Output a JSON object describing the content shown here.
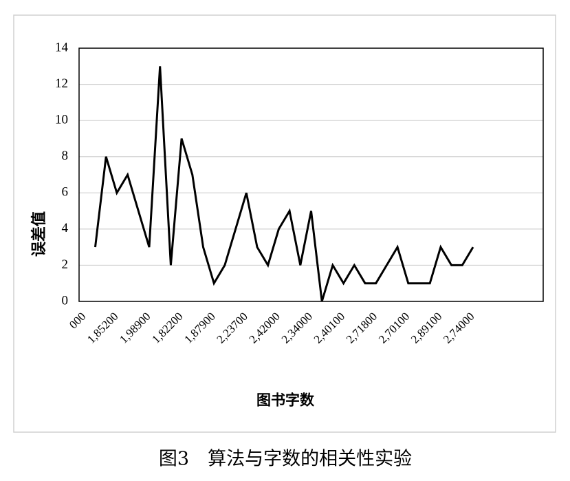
{
  "chart_data": {
    "type": "line",
    "y_label": "误差值",
    "x_label": "图书字数",
    "caption": "图3　算法与字数的相关性实验",
    "categories": [
      "000",
      null,
      null,
      "1,85200",
      null,
      null,
      "1,98900",
      null,
      null,
      "1,82200",
      null,
      null,
      "1,87900",
      null,
      null,
      "2,23700",
      null,
      null,
      "2,42000",
      null,
      null,
      "2,34000",
      null,
      null,
      "2,40100",
      null,
      null,
      "2,71800",
      null,
      null,
      "2,70100",
      null,
      null,
      "2,89100",
      null,
      null,
      "2,74000",
      null,
      null,
      null,
      null,
      null,
      null
    ],
    "values": [
      null,
      3,
      8,
      6,
      7,
      5,
      3,
      13,
      2,
      9,
      7,
      3,
      1,
      2,
      4,
      6,
      3,
      2,
      4,
      5,
      2,
      5,
      0,
      2,
      1,
      2,
      1,
      1,
      2,
      3,
      1,
      1,
      1,
      3,
      2,
      2,
      3,
      null,
      null,
      null,
      null,
      null,
      null
    ],
    "color": "#000000",
    "ylim": [
      0,
      14
    ],
    "yticks": [
      0,
      2,
      4,
      6,
      8,
      10,
      12,
      14
    ],
    "grid": true
  }
}
